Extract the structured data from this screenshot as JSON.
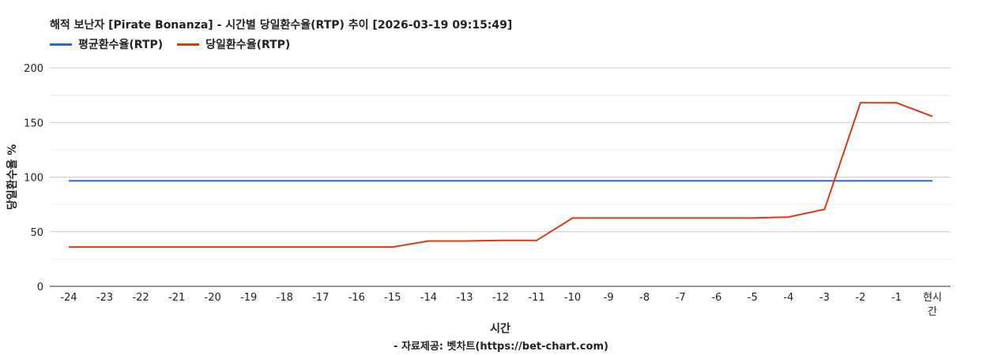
{
  "chart_data": {
    "type": "line",
    "title": "해적 보난자 [Pirate Bonanza] - 시간별 당일환수율(RTP) 추이 [2026-03-19 09:15:49]",
    "xlabel": "시간",
    "ylabel": "당일환수율 %",
    "credit": "- 자료제공: 벳차트(https://bet-chart.com)",
    "categories": [
      "-24",
      "-23",
      "-22",
      "-21",
      "-20",
      "-19",
      "-18",
      "-17",
      "-16",
      "-15",
      "-14",
      "-13",
      "-12",
      "-11",
      "-10",
      "-9",
      "-8",
      "-7",
      "-6",
      "-5",
      "-4",
      "-3",
      "-2",
      "-1",
      "현시간"
    ],
    "ylim": [
      0,
      200
    ],
    "yticks": [
      0,
      50,
      100,
      150,
      200
    ],
    "grid": true,
    "legend_position": "top-left",
    "series": [
      {
        "name": "평균환수율(RTP)",
        "color": "#3366cc",
        "values": [
          96.5,
          96.5,
          96.5,
          96.5,
          96.5,
          96.5,
          96.5,
          96.5,
          96.5,
          96.5,
          96.5,
          96.5,
          96.5,
          96.5,
          96.5,
          96.5,
          96.5,
          96.5,
          96.5,
          96.5,
          96.5,
          96.5,
          96.5,
          96.5,
          96.5
        ]
      },
      {
        "name": "당일환수율(RTP)",
        "color": "#dc3912",
        "values": [
          36,
          36,
          36,
          36,
          36,
          36,
          36,
          36,
          36,
          36,
          41.5,
          41.5,
          42,
          42,
          62.5,
          62.5,
          62.5,
          62.5,
          62.5,
          62.5,
          63.5,
          70.5,
          168,
          168,
          155.5
        ]
      }
    ]
  }
}
